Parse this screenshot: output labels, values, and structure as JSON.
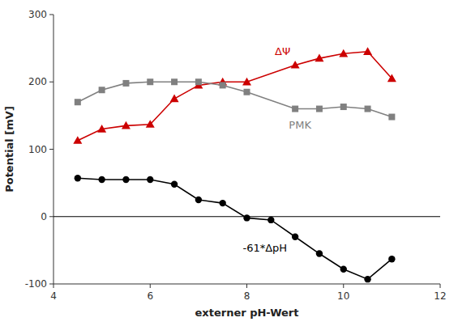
{
  "chart_data": {
    "type": "line",
    "xlabel": "externer pH-Wert",
    "ylabel": "Potential [mV]",
    "xlim": [
      4,
      12
    ],
    "ylim": [
      -100,
      300
    ],
    "xticks": [
      4,
      6,
      8,
      10,
      12
    ],
    "yticks": [
      -100,
      0,
      100,
      200,
      300
    ],
    "hlines": [
      0
    ],
    "series": [
      {
        "name": "-61*ΔpH",
        "color": "#000000",
        "marker": "circle",
        "x": [
          4.5,
          5.0,
          5.5,
          6.0,
          6.5,
          7.0,
          7.5,
          8.0,
          8.5,
          9.0,
          9.5,
          10.0,
          10.5,
          11.0
        ],
        "values": [
          57,
          55,
          55,
          55,
          48,
          25,
          20,
          -2,
          -5,
          -30,
          -55,
          -78,
          -93,
          -63
        ]
      },
      {
        "name": "ΔΨ",
        "color": "#cc0000",
        "marker": "triangle",
        "x": [
          4.5,
          5.0,
          5.5,
          6.0,
          6.5,
          7.0,
          7.5,
          8.0,
          9.0,
          9.5,
          10.0,
          10.5,
          11.0
        ],
        "values": [
          113,
          130,
          135,
          137,
          175,
          195,
          200,
          200,
          225,
          235,
          242,
          245,
          205
        ]
      },
      {
        "name": "PMK",
        "color": "#808080",
        "marker": "square",
        "x": [
          4.5,
          5.0,
          5.5,
          6.0,
          6.5,
          7.0,
          7.5,
          8.0,
          9.0,
          9.5,
          10.0,
          10.5,
          11.0
        ],
        "values": [
          170,
          188,
          198,
          200,
          200,
          200,
          195,
          185,
          160,
          160,
          163,
          160,
          148
        ]
      }
    ]
  }
}
